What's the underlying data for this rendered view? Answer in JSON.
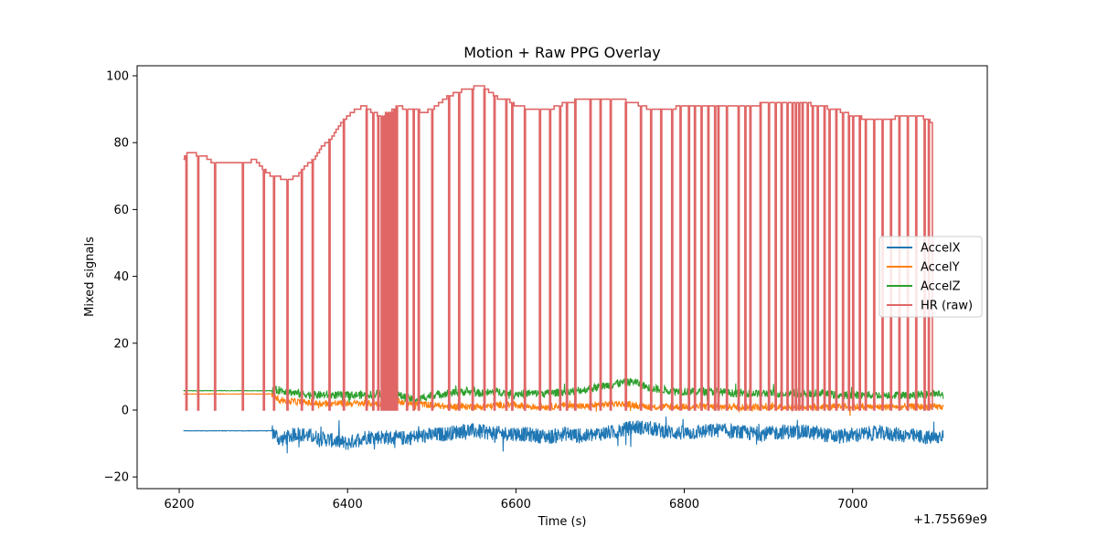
{
  "chart_data": {
    "type": "line",
    "title": "Motion + Raw PPG Overlay",
    "xlabel": "Time (s)",
    "ylabel": "Mixed signals",
    "x_offset_label": "+1.75569e9",
    "xlim": [
      6150,
      7160
    ],
    "ylim": [
      -23.5,
      103
    ],
    "x_ticks": [
      6200,
      6400,
      6600,
      6800,
      7000
    ],
    "x_tick_labels": [
      "6200",
      "6400",
      "6600",
      "6800",
      "7000"
    ],
    "y_ticks": [
      -20,
      0,
      20,
      40,
      60,
      80,
      100
    ],
    "y_tick_labels": [
      "−20",
      "0",
      "20",
      "40",
      "60",
      "80",
      "100"
    ],
    "grid": false,
    "legend_placement": "center-right",
    "series": [
      {
        "name": "AccelX",
        "color": "#1f77b4",
        "x": [
          6205,
          6310,
          6320,
          6340,
          6360,
          6380,
          6400,
          6420,
          6440,
          6460,
          6480,
          6500,
          6520,
          6540,
          6560,
          6580,
          6600,
          6620,
          6640,
          6660,
          6680,
          6700,
          6720,
          6740,
          6760,
          6780,
          6800,
          6820,
          6840,
          6860,
          6880,
          6900,
          6920,
          6940,
          6960,
          6980,
          7000,
          7020,
          7040,
          7060,
          7080,
          7100,
          7108
        ],
        "y": [
          -6.2,
          -6.2,
          -9,
          -7,
          -8,
          -9,
          -10,
          -8,
          -8,
          -8.5,
          -8,
          -7.5,
          -7,
          -6,
          -6.5,
          -7,
          -7,
          -7.5,
          -8,
          -7,
          -8,
          -7,
          -6.5,
          -5,
          -5.5,
          -6.5,
          -7,
          -6.5,
          -6,
          -6.5,
          -7,
          -7,
          -6.5,
          -6.5,
          -7,
          -8,
          -7.5,
          -7,
          -7,
          -7.5,
          -8,
          -8.5,
          -7
        ]
      },
      {
        "name": "AccelY",
        "color": "#ff7f0e",
        "x": [
          6205,
          6310,
          6320,
          6340,
          6360,
          6380,
          6400,
          6420,
          6440,
          6460,
          6480,
          6500,
          6520,
          6540,
          6560,
          6580,
          6600,
          6620,
          6640,
          6660,
          6680,
          6700,
          6720,
          6740,
          6760,
          6780,
          6800,
          6820,
          6840,
          6860,
          6880,
          6900,
          6920,
          6940,
          6960,
          6980,
          7000,
          7020,
          7040,
          7060,
          7080,
          7100,
          7108
        ],
        "y": [
          4.8,
          4.8,
          3,
          2.5,
          2,
          2,
          2,
          2,
          2,
          2.5,
          2,
          1.5,
          1,
          1,
          1,
          1.5,
          1.5,
          1,
          1,
          1.5,
          1,
          1.5,
          2,
          1.5,
          1,
          1,
          1,
          1,
          1,
          1,
          1,
          1,
          1,
          1,
          1,
          1,
          1,
          1,
          1,
          1,
          1,
          1,
          1
        ]
      },
      {
        "name": "AccelZ",
        "color": "#2ca02c",
        "x": [
          6205,
          6310,
          6320,
          6340,
          6360,
          6380,
          6400,
          6420,
          6440,
          6460,
          6480,
          6500,
          6520,
          6540,
          6560,
          6580,
          6600,
          6620,
          6640,
          6660,
          6680,
          6700,
          6720,
          6740,
          6760,
          6780,
          6800,
          6820,
          6840,
          6860,
          6880,
          6900,
          6920,
          6940,
          6960,
          6980,
          7000,
          7020,
          7040,
          7060,
          7080,
          7100,
          7108
        ],
        "y": [
          5.8,
          5.8,
          6,
          5,
          4.5,
          4.5,
          4.5,
          4.5,
          5,
          4.5,
          3,
          4.5,
          5,
          5.5,
          5,
          5.5,
          5,
          5,
          5,
          5.5,
          6,
          7,
          8,
          8.5,
          6.5,
          6,
          5.5,
          5.5,
          5.5,
          5,
          5,
          5,
          5,
          5,
          5,
          4.5,
          4.5,
          4.5,
          4.5,
          4.5,
          4.5,
          5,
          4.5
        ]
      },
      {
        "name": "HR (raw)",
        "color": "#e06666",
        "x": [
          6205,
          6210,
          6230,
          6240,
          6280,
          6290,
          6300,
          6310,
          6330,
          6340,
          6350,
          6360,
          6370,
          6380,
          6390,
          6400,
          6410,
          6420,
          6430,
          6440,
          6450,
          6460,
          6470,
          6480,
          6490,
          6500,
          6510,
          6520,
          6540,
          6560,
          6570,
          6580,
          6590,
          6600,
          6620,
          6640,
          6660,
          6680,
          6700,
          6720,
          6740,
          6760,
          6780,
          6800,
          6820,
          6840,
          6860,
          6880,
          6900,
          6920,
          6940,
          6960,
          6980,
          7000,
          7020,
          7040,
          7060,
          7080,
          7095
        ],
        "y": [
          75,
          77,
          76,
          74,
          74,
          75,
          72,
          70,
          69,
          70,
          73,
          75,
          79,
          81,
          85,
          88,
          90,
          91,
          89,
          88,
          89,
          91,
          90,
          90,
          89,
          90,
          92,
          94,
          96,
          97,
          95,
          93,
          93,
          91,
          90,
          90,
          92,
          93,
          93,
          93,
          92,
          90,
          90,
          91,
          91,
          91,
          91,
          91,
          92,
          92,
          92,
          91,
          90,
          88,
          87,
          87,
          88,
          88,
          86
        ],
        "dropouts_to": 0,
        "dropout_x": [
          6208,
          6222,
          6242,
          6275,
          6300,
          6312,
          6328,
          6345,
          6358,
          6378,
          6395,
          6422,
          6430,
          6436,
          6440,
          6442,
          6444,
          6446,
          6448,
          6450,
          6452,
          6455,
          6458,
          6470,
          6478,
          6484,
          6500,
          6520,
          6532,
          6548,
          6562,
          6574,
          6588,
          6595,
          6610,
          6628,
          6640,
          6652,
          6660,
          6670,
          6688,
          6700,
          6712,
          6730,
          6748,
          6760,
          6772,
          6785,
          6795,
          6805,
          6812,
          6820,
          6828,
          6836,
          6840,
          6850,
          6864,
          6872,
          6878,
          6890,
          6900,
          6908,
          6915,
          6922,
          6928,
          6932,
          6936,
          6940,
          6946,
          6952,
          6958,
          6966,
          6972,
          6980,
          6988,
          6995,
          7000,
          7008,
          7015,
          7025,
          7035,
          7045,
          7055,
          7065,
          7075,
          7085,
          7090
        ]
      }
    ]
  }
}
